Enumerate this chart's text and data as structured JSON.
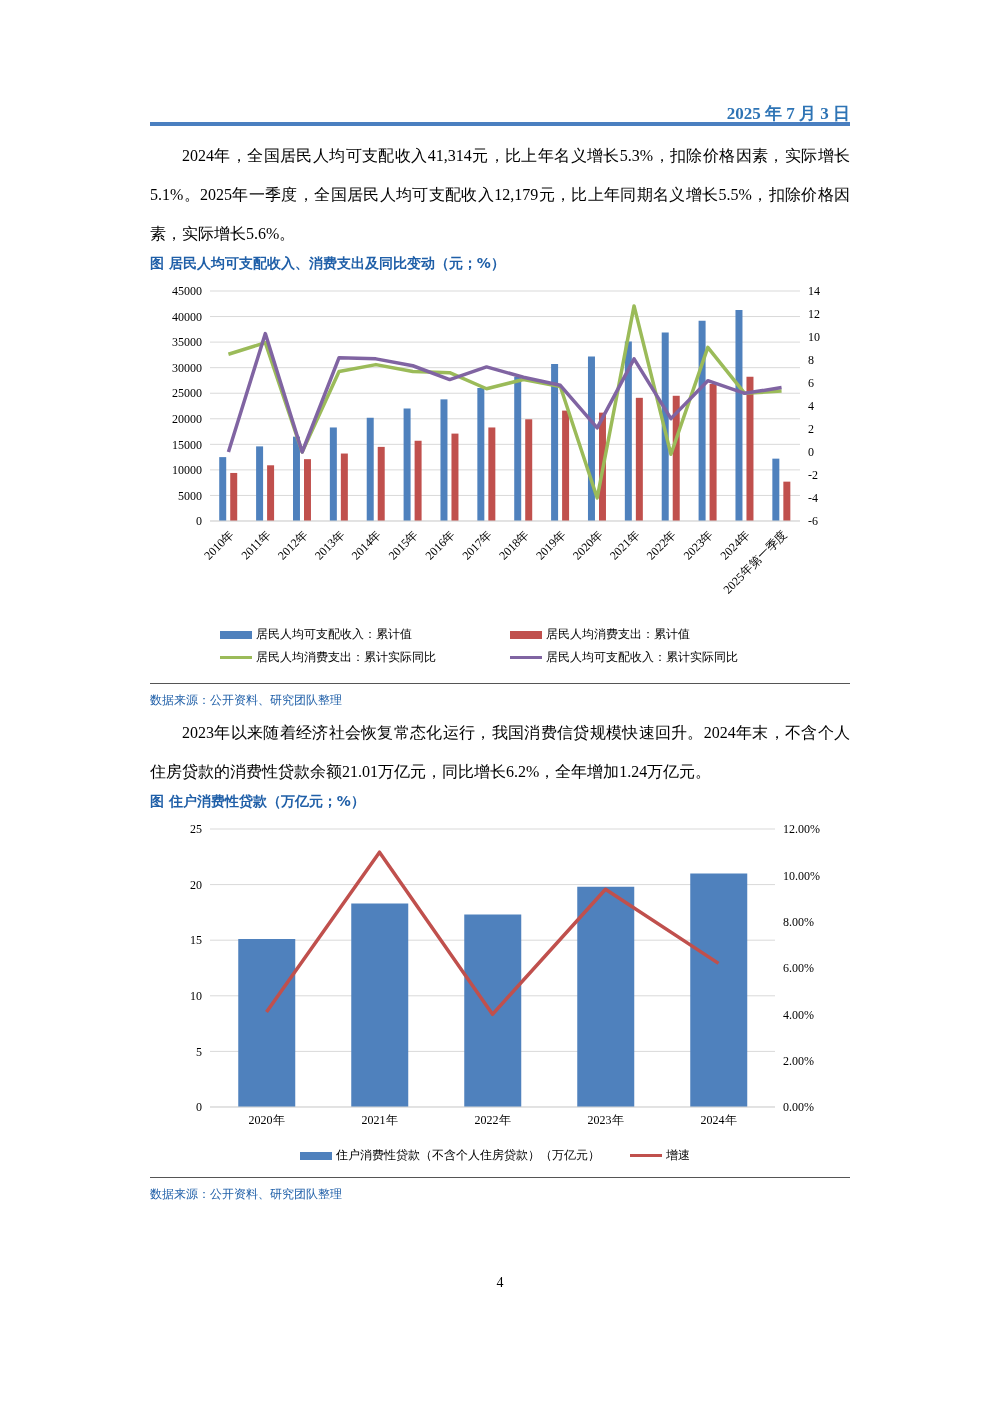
{
  "chart_data": [
    {
      "type": "bar",
      "title": "图 居民人均可支配收入、消费支出及同比变动（元；%）",
      "annotations": [
        "2025 年 7 月 3 日",
        "2024年，全国居民人均可支配收入41,314元，比上年名义增长5.3%，扣除价格因素，实际增长5.1%。2025年一季度，全国居民人均可支配收入12,179元，比上年同期名义增长5.5%，扣除价格因素，实际增长5.6%。",
        "数据来源：公开资料、研究团队整理"
      ],
      "categories": [
        "2010年",
        "2011年",
        "2012年",
        "2013年",
        "2014年",
        "2015年",
        "2016年",
        "2017年",
        "2018年",
        "2019年",
        "2020年",
        "2021年",
        "2022年",
        "2023年",
        "2024年",
        "2025年第一季度"
      ],
      "series": [
        {
          "name": "居民人均可支配收入：累计值",
          "color": "#4f81bd",
          "values": [
            12500,
            14600,
            16500,
            18300,
            20200,
            22000,
            23800,
            26000,
            28200,
            30700,
            32200,
            35100,
            36900,
            39200,
            41300,
            12200
          ]
        },
        {
          "name": "居民人均消费支出：累计值",
          "color": "#c0504d",
          "values": [
            9400,
            10900,
            12100,
            13200,
            14500,
            15700,
            17100,
            18300,
            19900,
            21600,
            21200,
            24100,
            24500,
            26800,
            28200,
            7700
          ]
        },
        {
          "name": "居民人均消费支出：累计实际同比",
          "type": "line",
          "axis": "y2",
          "color": "#9bbb59",
          "values": [
            8.5,
            9.5,
            0,
            7.0,
            7.6,
            7.0,
            6.9,
            5.5,
            6.3,
            5.7,
            -4.0,
            12.7,
            -0.2,
            9.1,
            5.1,
            5.3
          ]
        },
        {
          "name": "居民人均可支配收入：累计实际同比",
          "type": "line",
          "axis": "y2",
          "color": "#8064a2",
          "values": [
            0,
            10.3,
            0,
            8.2,
            8.1,
            7.5,
            6.3,
            7.4,
            6.5,
            5.8,
            2.1,
            8.1,
            2.9,
            6.2,
            5.1,
            5.6
          ]
        }
      ],
      "ylim": [
        0,
        45000
      ],
      "yticks": [
        0,
        5000,
        10000,
        15000,
        20000,
        25000,
        30000,
        35000,
        40000,
        45000
      ],
      "y2lim": [
        -6,
        14
      ],
      "y2ticks": [
        -6,
        -4,
        -2,
        0,
        2,
        4,
        6,
        8,
        10,
        12,
        14
      ],
      "grid": "y",
      "legend": "bottom",
      "marker": "none",
      "line_style": "solid"
    },
    {
      "type": "bar",
      "title": "图 住户消费性贷款（万亿元；%）",
      "annotations": [
        "2023年以来随着经济社会恢复常态化运行，我国消费信贷规模快速回升。2024年末，不含个人住房贷款的消费性贷款余额21.01万亿元，同比增长6.2%，全年增加1.24万亿元。",
        "数据来源：公开资料、研究团队整理",
        "4"
      ],
      "categories": [
        "2020年",
        "2021年",
        "2022年",
        "2023年",
        "2024年"
      ],
      "series": [
        {
          "name": "住户消费性贷款（不含个人住房贷款）（万亿元）",
          "color": "#4f81bd",
          "values": [
            15.1,
            18.3,
            17.3,
            19.8,
            21.0
          ]
        },
        {
          "name": "增速",
          "type": "line",
          "axis": "y2",
          "color": "#c0504d",
          "values": [
            4.1,
            11.0,
            4.0,
            9.4,
            6.2
          ]
        }
      ],
      "ylim": [
        0,
        25
      ],
      "yticks": [
        0,
        5,
        10,
        15,
        20,
        25
      ],
      "y2lim": [
        0,
        12
      ],
      "y2ticks": [
        {
          "value": 0,
          "label": "0.00%"
        },
        {
          "value": 2,
          "label": "2.00%"
        },
        {
          "value": 4,
          "label": "4.00%"
        },
        {
          "value": 6,
          "label": "6.00%"
        },
        {
          "value": 8,
          "label": "8.00%"
        },
        {
          "value": 10,
          "label": "10.00%"
        },
        {
          "value": 12,
          "label": "12.00%"
        }
      ],
      "grid": "y",
      "legend": "bottom",
      "marker": "none",
      "line_style": "solid"
    }
  ]
}
